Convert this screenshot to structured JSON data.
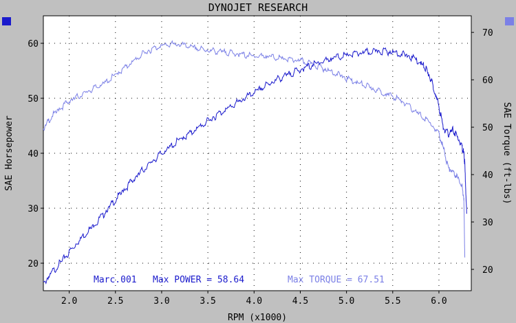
{
  "window": {
    "bg": "#c0c0c0"
  },
  "chart_data": {
    "type": "line",
    "title": "DYNOJET RESEARCH",
    "xlabel": "RPM (x1000)",
    "ylabel_left": "SAE Horsepower",
    "ylabel_right": "SAE Torque (ft-lbs)",
    "xlim": [
      1.72,
      6.35
    ],
    "ylim_left": [
      15,
      65
    ],
    "ylim_right": [
      15.5,
      73.5
    ],
    "x_ticks": [
      "2.0",
      "2.5",
      "3.0",
      "3.5",
      "4.0",
      "4.5",
      "5.0",
      "5.5",
      "6.0"
    ],
    "x_tick_values": [
      2.0,
      2.5,
      3.0,
      3.5,
      4.0,
      4.5,
      5.0,
      5.5,
      6.0
    ],
    "y_left_ticks": [
      "20",
      "30",
      "40",
      "50",
      "60"
    ],
    "y_left_tick_values": [
      20,
      30,
      40,
      50,
      60
    ],
    "y_right_ticks": [
      "20",
      "30",
      "40",
      "50",
      "60",
      "70"
    ],
    "y_right_tick_values": [
      20,
      30,
      40,
      50,
      60,
      70
    ],
    "grid": true,
    "series": [
      {
        "name": "Max POWER",
        "axis": "left",
        "color": "#1a1acc",
        "x": [
          1.72,
          1.8,
          1.9,
          2.0,
          2.1,
          2.2,
          2.3,
          2.4,
          2.5,
          2.6,
          2.7,
          2.8,
          2.9,
          3.0,
          3.1,
          3.2,
          3.3,
          3.4,
          3.5,
          3.6,
          3.7,
          3.8,
          3.9,
          4.0,
          4.1,
          4.2,
          4.3,
          4.4,
          4.5,
          4.6,
          4.7,
          4.8,
          4.9,
          5.0,
          5.1,
          5.2,
          5.3,
          5.4,
          5.5,
          5.6,
          5.7,
          5.8,
          5.85,
          5.9,
          5.95,
          6.0,
          6.05,
          6.1,
          6.15,
          6.2,
          6.25,
          6.27,
          6.28,
          6.3
        ],
        "y": [
          16.2,
          18.0,
          20.0,
          22.0,
          24.0,
          25.8,
          27.5,
          29.5,
          31.5,
          33.5,
          35.3,
          37.0,
          38.5,
          40.0,
          41.2,
          42.5,
          43.5,
          44.7,
          45.8,
          47.0,
          48.0,
          49.0,
          50.0,
          51.0,
          52.0,
          53.0,
          53.8,
          54.5,
          55.2,
          55.8,
          56.5,
          57.0,
          57.5,
          57.8,
          58.1,
          58.3,
          58.5,
          58.6,
          58.4,
          58.0,
          57.5,
          56.5,
          55.5,
          54.0,
          51.5,
          48.5,
          44.5,
          43.5,
          44.2,
          43.0,
          41.0,
          40.0,
          38.0,
          29.0
        ]
      },
      {
        "name": "Max TORQUE",
        "axis": "right",
        "color": "#7b80e6",
        "x": [
          1.72,
          1.8,
          1.9,
          2.0,
          2.1,
          2.2,
          2.3,
          2.4,
          2.5,
          2.6,
          2.7,
          2.8,
          2.9,
          3.0,
          3.1,
          3.2,
          3.3,
          3.4,
          3.5,
          3.6,
          3.7,
          3.8,
          3.9,
          4.0,
          4.1,
          4.2,
          4.3,
          4.4,
          4.5,
          4.6,
          4.7,
          4.8,
          4.9,
          5.0,
          5.1,
          5.2,
          5.3,
          5.4,
          5.5,
          5.6,
          5.7,
          5.8,
          5.9,
          6.0,
          6.05,
          6.1,
          6.15,
          6.2,
          6.25,
          6.27,
          6.28
        ],
        "y": [
          49.5,
          52.0,
          54.0,
          55.5,
          56.5,
          57.5,
          58.5,
          59.5,
          61.0,
          62.5,
          64.0,
          65.5,
          66.5,
          67.2,
          67.5,
          67.4,
          67.0,
          66.5,
          66.2,
          66.0,
          65.8,
          65.5,
          65.2,
          65.0,
          65.0,
          64.8,
          64.5,
          64.2,
          64.0,
          63.5,
          62.8,
          62.0,
          61.2,
          60.3,
          59.5,
          58.8,
          58.0,
          57.2,
          56.5,
          55.5,
          54.0,
          52.5,
          51.0,
          48.5,
          45.5,
          41.5,
          40.5,
          39.5,
          37.5,
          35.0,
          22.5
        ]
      }
    ],
    "annotations": {
      "run_label": "Marc.001",
      "power_text": "Max POWER = 58.64",
      "torque_text": "Max TORQUE = 67.51"
    }
  }
}
